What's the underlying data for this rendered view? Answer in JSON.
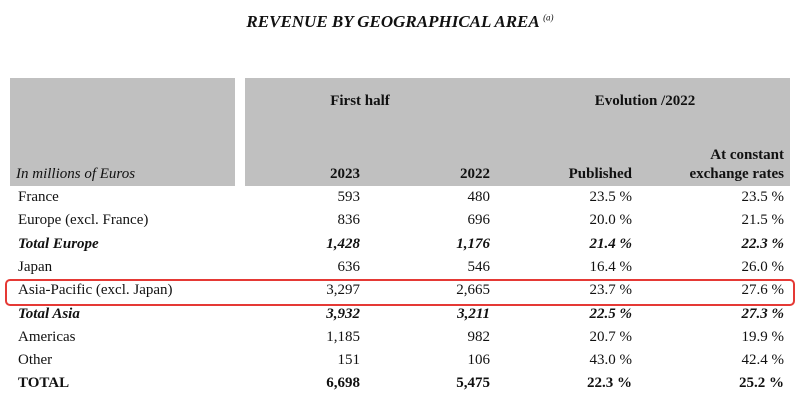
{
  "title": "REVENUE BY GEOGRAPHICAL AREA",
  "title_note": "(a)",
  "header": {
    "unit": "In millions of Euros",
    "group1": "First half",
    "group2": "Evolution /2022",
    "col1": "2023",
    "col2": "2022",
    "col3": "Published",
    "col4_line1": "At constant",
    "col4_line2": "exchange rates"
  },
  "rows": [
    {
      "label": "France",
      "v2023": "593",
      "v2022": "480",
      "published": "23.5 %",
      "constant": "23.5 %",
      "style": "normal"
    },
    {
      "label": "Europe (excl. France)",
      "v2023": "836",
      "v2022": "696",
      "published": "20.0 %",
      "constant": "21.5 %",
      "style": "normal"
    },
    {
      "label": "Total Europe",
      "v2023": "1,428",
      "v2022": "1,176",
      "published": "21.4 %",
      "constant": "22.3 %",
      "style": "bold-italic"
    },
    {
      "label": "Japan",
      "v2023": "636",
      "v2022": "546",
      "published": "16.4 %",
      "constant": "26.0 %",
      "style": "normal"
    },
    {
      "label": "Asia-Pacific (excl. Japan)",
      "v2023": "3,297",
      "v2022": "2,665",
      "published": "23.7 %",
      "constant": "27.6 %",
      "style": "normal",
      "highlighted": true
    },
    {
      "label": "Total Asia",
      "v2023": "3,932",
      "v2022": "3,211",
      "published": "22.5 %",
      "constant": "27.3 %",
      "style": "bold-italic"
    },
    {
      "label": "Americas",
      "v2023": "1,185",
      "v2022": "982",
      "published": "20.7 %",
      "constant": "19.9 %",
      "style": "normal"
    },
    {
      "label": "Other",
      "v2023": "151",
      "v2022": "106",
      "published": "43.0 %",
      "constant": "42.4 %",
      "style": "normal"
    },
    {
      "label": "TOTAL",
      "v2023": "6,698",
      "v2022": "5,475",
      "published": "22.3 %",
      "constant": "25.2 %",
      "style": "bold"
    }
  ],
  "colors": {
    "header_bg": "#c0c0c0",
    "highlight": "#e53935"
  }
}
